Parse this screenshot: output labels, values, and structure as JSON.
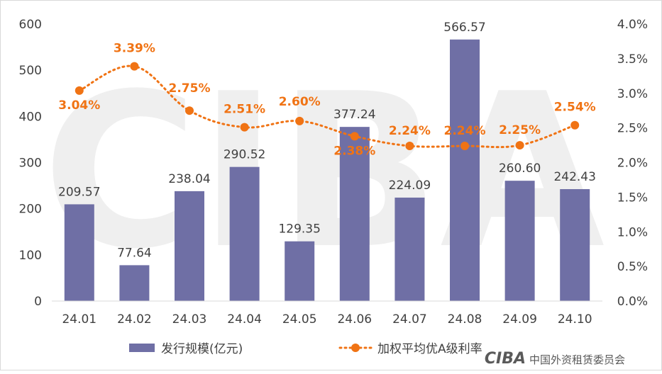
{
  "chart_data": {
    "type": "bar+line",
    "categories": [
      "24.01",
      "24.02",
      "24.03",
      "24.04",
      "24.05",
      "24.06",
      "24.07",
      "24.08",
      "24.09",
      "24.10"
    ],
    "series": [
      {
        "name": "发行规模(亿元)",
        "type": "bar",
        "axis": "left",
        "values": [
          209.57,
          77.64,
          238.04,
          290.52,
          129.35,
          377.24,
          224.09,
          566.57,
          260.6,
          242.43
        ],
        "labels": [
          "209.57",
          "77.64",
          "238.04",
          "290.52",
          "129.35",
          "377.24",
          "224.09",
          "566.57",
          "260.60",
          "242.43"
        ],
        "color": "#6f6fa5"
      },
      {
        "name": "加权平均优A级利率",
        "type": "line",
        "axis": "right",
        "values": [
          3.04,
          3.39,
          2.75,
          2.51,
          2.6,
          2.38,
          2.24,
          2.24,
          2.25,
          2.54
        ],
        "labels": [
          "3.04%",
          "3.39%",
          "2.75%",
          "2.51%",
          "2.60%",
          "2.38%",
          "2.24%",
          "2.24%",
          "2.25%",
          "2.54%"
        ],
        "color": "#f07314",
        "style": "dotted",
        "smooth": true
      }
    ],
    "y_left": {
      "min": 0,
      "max": 600,
      "ticks": [
        "0",
        "100",
        "200",
        "300",
        "400",
        "500",
        "600"
      ]
    },
    "y_right": {
      "min": 0,
      "max": 4,
      "ticks": [
        "0.0%",
        "0.5%",
        "1.0%",
        "1.5%",
        "2.0%",
        "2.5%",
        "3.0%",
        "3.5%",
        "4.0%"
      ]
    },
    "legend_position": "bottom",
    "grid": false
  },
  "watermark": {
    "text": "中国外资租赁委员会",
    "logo": "CIBA"
  }
}
